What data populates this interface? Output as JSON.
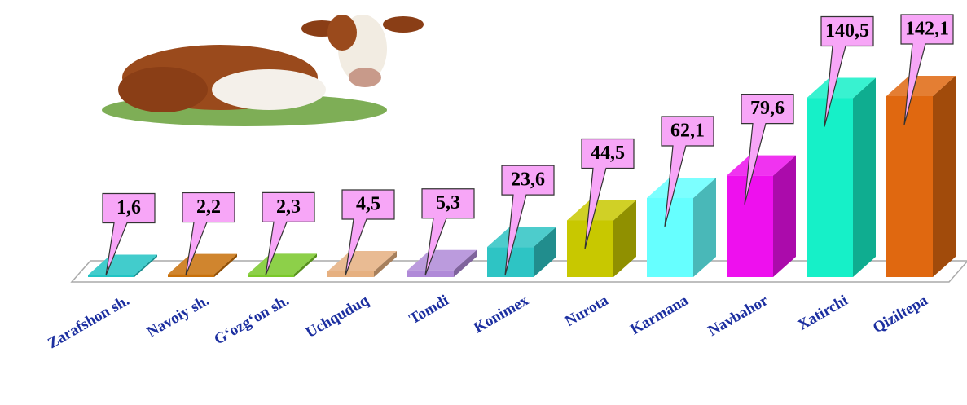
{
  "chart_data": {
    "type": "bar3d",
    "categories": [
      "Zarafshon sh.",
      "Navoiy sh.",
      "G‘ozg‘on sh.",
      "Uchquduq",
      "Tomdi",
      "Konimex",
      "Nurota",
      "Karmana",
      "Navbahor",
      "Xatirchi",
      "Qiziltepa"
    ],
    "values": [
      1.6,
      2.2,
      2.3,
      4.5,
      5.3,
      23.6,
      44.5,
      62.1,
      79.6,
      140.5,
      142.1
    ],
    "value_labels": [
      "1,6",
      "2,2",
      "2,3",
      "4,5",
      "5,3",
      "23,6",
      "44,5",
      "62,1",
      "79,6",
      "140,5",
      "142,1"
    ],
    "colors": [
      "#22c4c4",
      "#c8700a",
      "#7ac82a",
      "#e6b080",
      "#b08ad8",
      "#2ec4c4",
      "#c8c800",
      "#66ffff",
      "#ee10ee",
      "#16f0c8",
      "#e06810"
    ]
  }
}
